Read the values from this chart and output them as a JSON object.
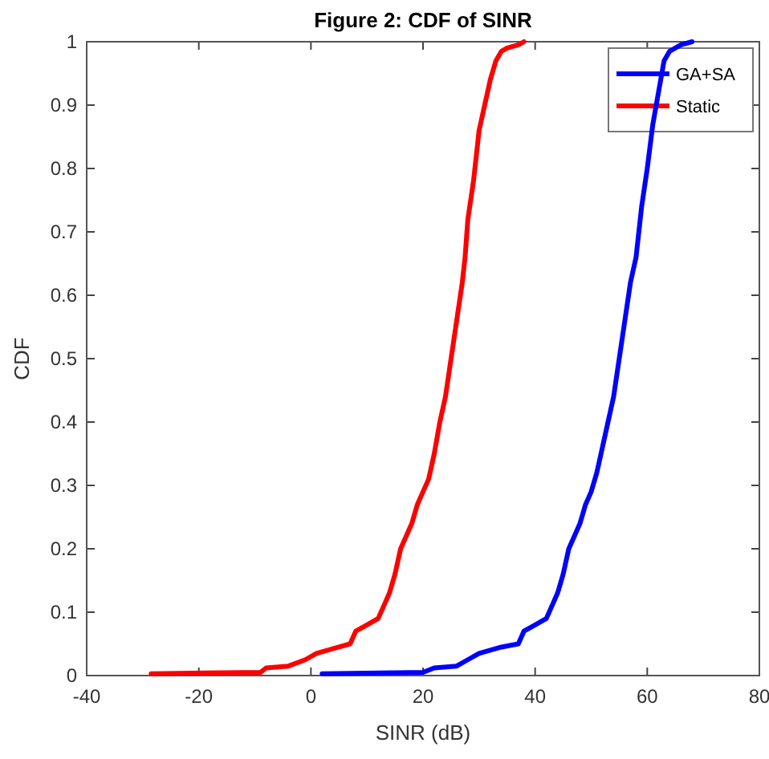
{
  "chart_data": {
    "type": "line",
    "title": "Figure 2: CDF of SINR",
    "xlabel": "SINR (dB)",
    "ylabel": "CDF",
    "xlim": [
      -40,
      80
    ],
    "xticks": [
      -40,
      -20,
      0,
      20,
      40,
      60,
      80
    ],
    "ylim": [
      0,
      1
    ],
    "yticks": [
      0,
      0.1,
      0.2,
      0.3,
      0.4,
      0.5,
      0.6,
      0.7,
      0.8,
      0.9,
      1
    ],
    "legend": "top right",
    "grid": false,
    "series": [
      {
        "name": "GA+SA",
        "color": "#0000ff",
        "x": [
          2,
          20,
          22,
          26,
          28,
          30,
          32,
          34,
          37,
          38,
          40,
          42,
          43,
          44,
          45,
          46,
          47,
          48,
          49,
          50,
          51,
          52,
          53,
          54,
          55,
          56,
          57,
          58,
          59,
          60,
          61,
          62,
          63,
          64,
          66,
          68
        ],
        "values": [
          0.003,
          0.005,
          0.012,
          0.015,
          0.025,
          0.035,
          0.04,
          0.045,
          0.05,
          0.07,
          0.08,
          0.09,
          0.11,
          0.13,
          0.16,
          0.2,
          0.22,
          0.24,
          0.27,
          0.29,
          0.32,
          0.36,
          0.4,
          0.44,
          0.5,
          0.56,
          0.62,
          0.66,
          0.74,
          0.8,
          0.87,
          0.92,
          0.97,
          0.985,
          0.995,
          1
        ]
      },
      {
        "name": "Static",
        "color": "#ff0000",
        "x": [
          -28.5,
          -9,
          -8,
          -4,
          -1,
          1,
          3,
          5,
          7,
          8,
          10,
          12,
          13,
          14,
          15,
          16,
          17,
          18,
          19,
          20,
          21,
          22,
          23,
          24,
          25,
          26,
          27,
          27.5,
          28,
          29,
          30,
          31,
          32,
          33,
          34,
          35,
          37,
          38
        ],
        "values": [
          0.003,
          0.005,
          0.012,
          0.015,
          0.025,
          0.035,
          0.04,
          0.045,
          0.05,
          0.07,
          0.08,
          0.09,
          0.11,
          0.13,
          0.16,
          0.2,
          0.22,
          0.24,
          0.27,
          0.29,
          0.31,
          0.35,
          0.4,
          0.44,
          0.5,
          0.56,
          0.62,
          0.66,
          0.72,
          0.78,
          0.86,
          0.9,
          0.94,
          0.97,
          0.985,
          0.99,
          0.995,
          1
        ]
      }
    ]
  }
}
